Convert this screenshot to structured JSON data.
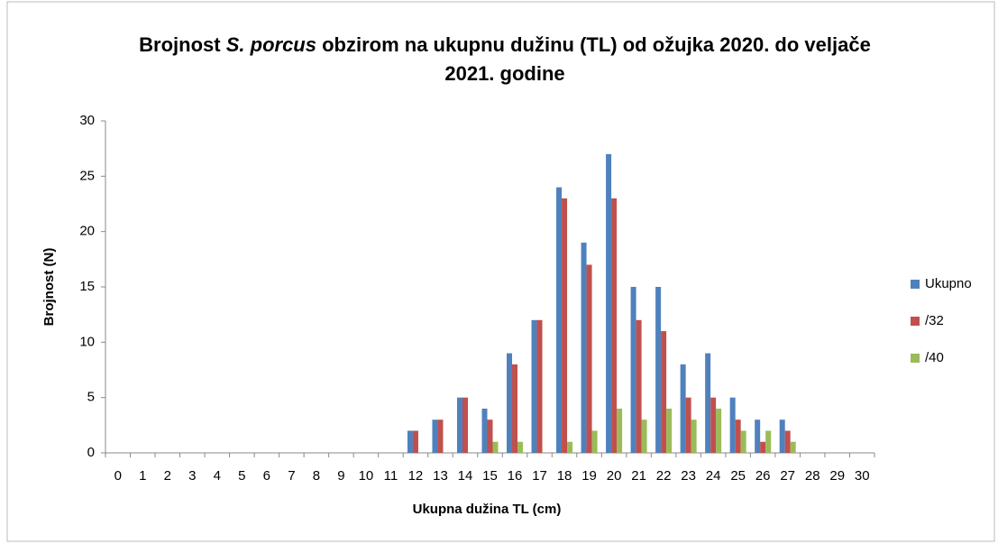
{
  "chart_data": {
    "type": "bar",
    "title": [
      "Brojnost ",
      "S. porcus",
      " obzirom na ukupnu dužinu (TL) od ožujka 2020. do veljače 2021. godine"
    ],
    "x_label": "Ukupna dužina TL (cm)",
    "y_label": "Brojnost (N)",
    "categories": [
      "0",
      "1",
      "2",
      "3",
      "4",
      "5",
      "6",
      "7",
      "8",
      "9",
      "10",
      "11",
      "12",
      "13",
      "14",
      "15",
      "16",
      "17",
      "18",
      "19",
      "20",
      "21",
      "22",
      "23",
      "24",
      "25",
      "26",
      "27",
      "28",
      "29",
      "30"
    ],
    "series": [
      {
        "name": "Ukupno",
        "color": "#4f81bd",
        "values": [
          0,
          0,
          0,
          0,
          0,
          0,
          0,
          0,
          0,
          0,
          0,
          0,
          2,
          3,
          5,
          4,
          9,
          12,
          24,
          19,
          27,
          15,
          15,
          8,
          9,
          5,
          3,
          3,
          0,
          0,
          0
        ]
      },
      {
        "name": "/32",
        "color": "#c0504d",
        "values": [
          0,
          0,
          0,
          0,
          0,
          0,
          0,
          0,
          0,
          0,
          0,
          0,
          2,
          3,
          5,
          3,
          8,
          12,
          23,
          17,
          23,
          12,
          11,
          5,
          5,
          3,
          1,
          2,
          0,
          0,
          0
        ]
      },
      {
        "name": "/40",
        "color": "#9bbb59",
        "values": [
          0,
          0,
          0,
          0,
          0,
          0,
          0,
          0,
          0,
          0,
          0,
          0,
          0,
          0,
          0,
          1,
          1,
          0,
          1,
          2,
          4,
          3,
          4,
          3,
          4,
          2,
          2,
          1,
          0,
          0,
          0
        ]
      }
    ],
    "ylim": [
      0,
      30
    ],
    "yticks": [
      0,
      5,
      10,
      15,
      20,
      25,
      30
    ],
    "legend": "right"
  }
}
